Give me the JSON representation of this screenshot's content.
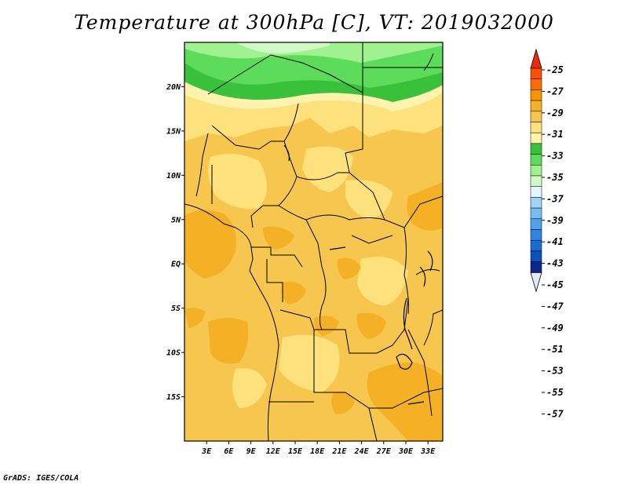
{
  "title": "Temperature at 300hPa [C], VT: 2019032000",
  "footer": "GrADS: IGES/COLA",
  "map": {
    "region": "Central Africa",
    "lon_range": [
      0,
      35
    ],
    "lat_range": [
      -20,
      25
    ],
    "lat_tick_labels": [
      "20N",
      "15N",
      "10N",
      "5N",
      "EQ",
      "5S",
      "10S",
      "15S"
    ],
    "lon_tick_labels": [
      "3E",
      "6E",
      "9E",
      "12E",
      "15E",
      "18E",
      "21E",
      "24E",
      "27E",
      "30E",
      "33E"
    ]
  },
  "colorbar": {
    "labels": [
      "-25",
      "-27",
      "-29",
      "-31",
      "-33",
      "-35",
      "-37",
      "-39",
      "-41",
      "-43",
      "-45",
      "-47",
      "-49",
      "-51",
      "-53",
      "-55",
      "-57"
    ],
    "colors": [
      "#fb4e0a",
      "#f96b07",
      "#f59500",
      "#f4b125",
      "#f6c64e",
      "#fde17c",
      "#fff3ae",
      "#39c13c",
      "#5cdc5a",
      "#9ff28f",
      "#d1f9c5",
      "#e3f6fb",
      "#a1d3f4",
      "#79bcf1",
      "#50a1ea",
      "#2f84e2",
      "#176dd4",
      "#0f50b6",
      "#0b268e"
    ],
    "top_arrow_color": "#f0280a",
    "bottom_arrow_color": "#e4e7f7"
  },
  "field_colors": {
    "t_33_35": "#fde17c",
    "t_31_33": "#f6c64e",
    "t_29_31": "#f4b125",
    "t_35_37": "#fff3ae",
    "t_37_39": "#39c13c",
    "t_39_41": "#5cdc5a",
    "t_41_43": "#9ff28f",
    "t_43_45": "#d1f9c5"
  }
}
